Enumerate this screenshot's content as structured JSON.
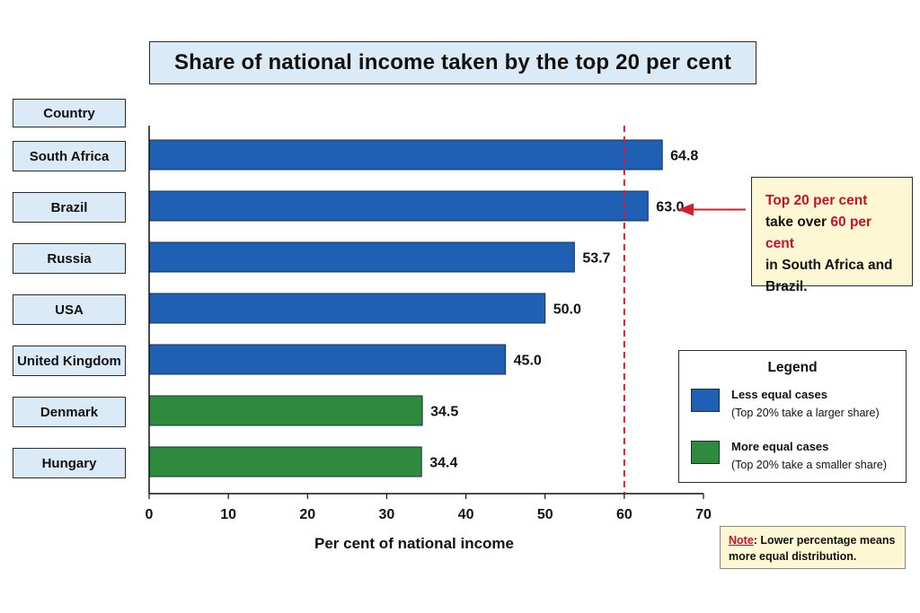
{
  "title": "Share of national income taken by the top 20 per cent",
  "category_header": "Country",
  "chart_data": {
    "type": "bar",
    "orientation": "horizontal",
    "title": "Share of national income taken by the top 20 per cent",
    "xlabel": "Per cent of national income",
    "ylabel": "Country",
    "categories": [
      "South Africa",
      "Brazil",
      "Russia",
      "USA",
      "United Kingdom",
      "Denmark",
      "Hungary"
    ],
    "values": [
      64.8,
      63.0,
      53.7,
      50.0,
      45.0,
      34.5,
      34.4
    ],
    "value_labels": [
      "64.8",
      "63.0",
      "53.7",
      "50.0",
      "45.0",
      "34.5",
      "34.4"
    ],
    "groups": [
      "less",
      "less",
      "less",
      "less",
      "less",
      "more",
      "more"
    ],
    "xlim": [
      0,
      70
    ],
    "xticks": [
      "0",
      "10",
      "20",
      "30",
      "40",
      "50",
      "60",
      "70"
    ],
    "reference_line": 60,
    "grid": false,
    "legend_placement": "bottom-right"
  },
  "colors": {
    "less": "#1f5fb4",
    "more": "#2e8b3e",
    "reference": "#d0202e",
    "box_fill": "#dbeaf7",
    "annotation_fill": "#fdf7d3"
  },
  "annotation": {
    "line1": "Top 20 per cent",
    "line2_prefix": "take over ",
    "line2_highlight": "60 per cent",
    "line3": "in South Africa and",
    "line4": "Brazil."
  },
  "legend": {
    "title": "Legend",
    "less_label": "Less equal cases",
    "less_sub": "(Top 20% take a larger share)",
    "more_label": "More equal cases",
    "more_sub": "(Top 20% take a smaller share)"
  },
  "note": {
    "label": "Note",
    "text": ": Lower percentage means more equal distribution."
  }
}
